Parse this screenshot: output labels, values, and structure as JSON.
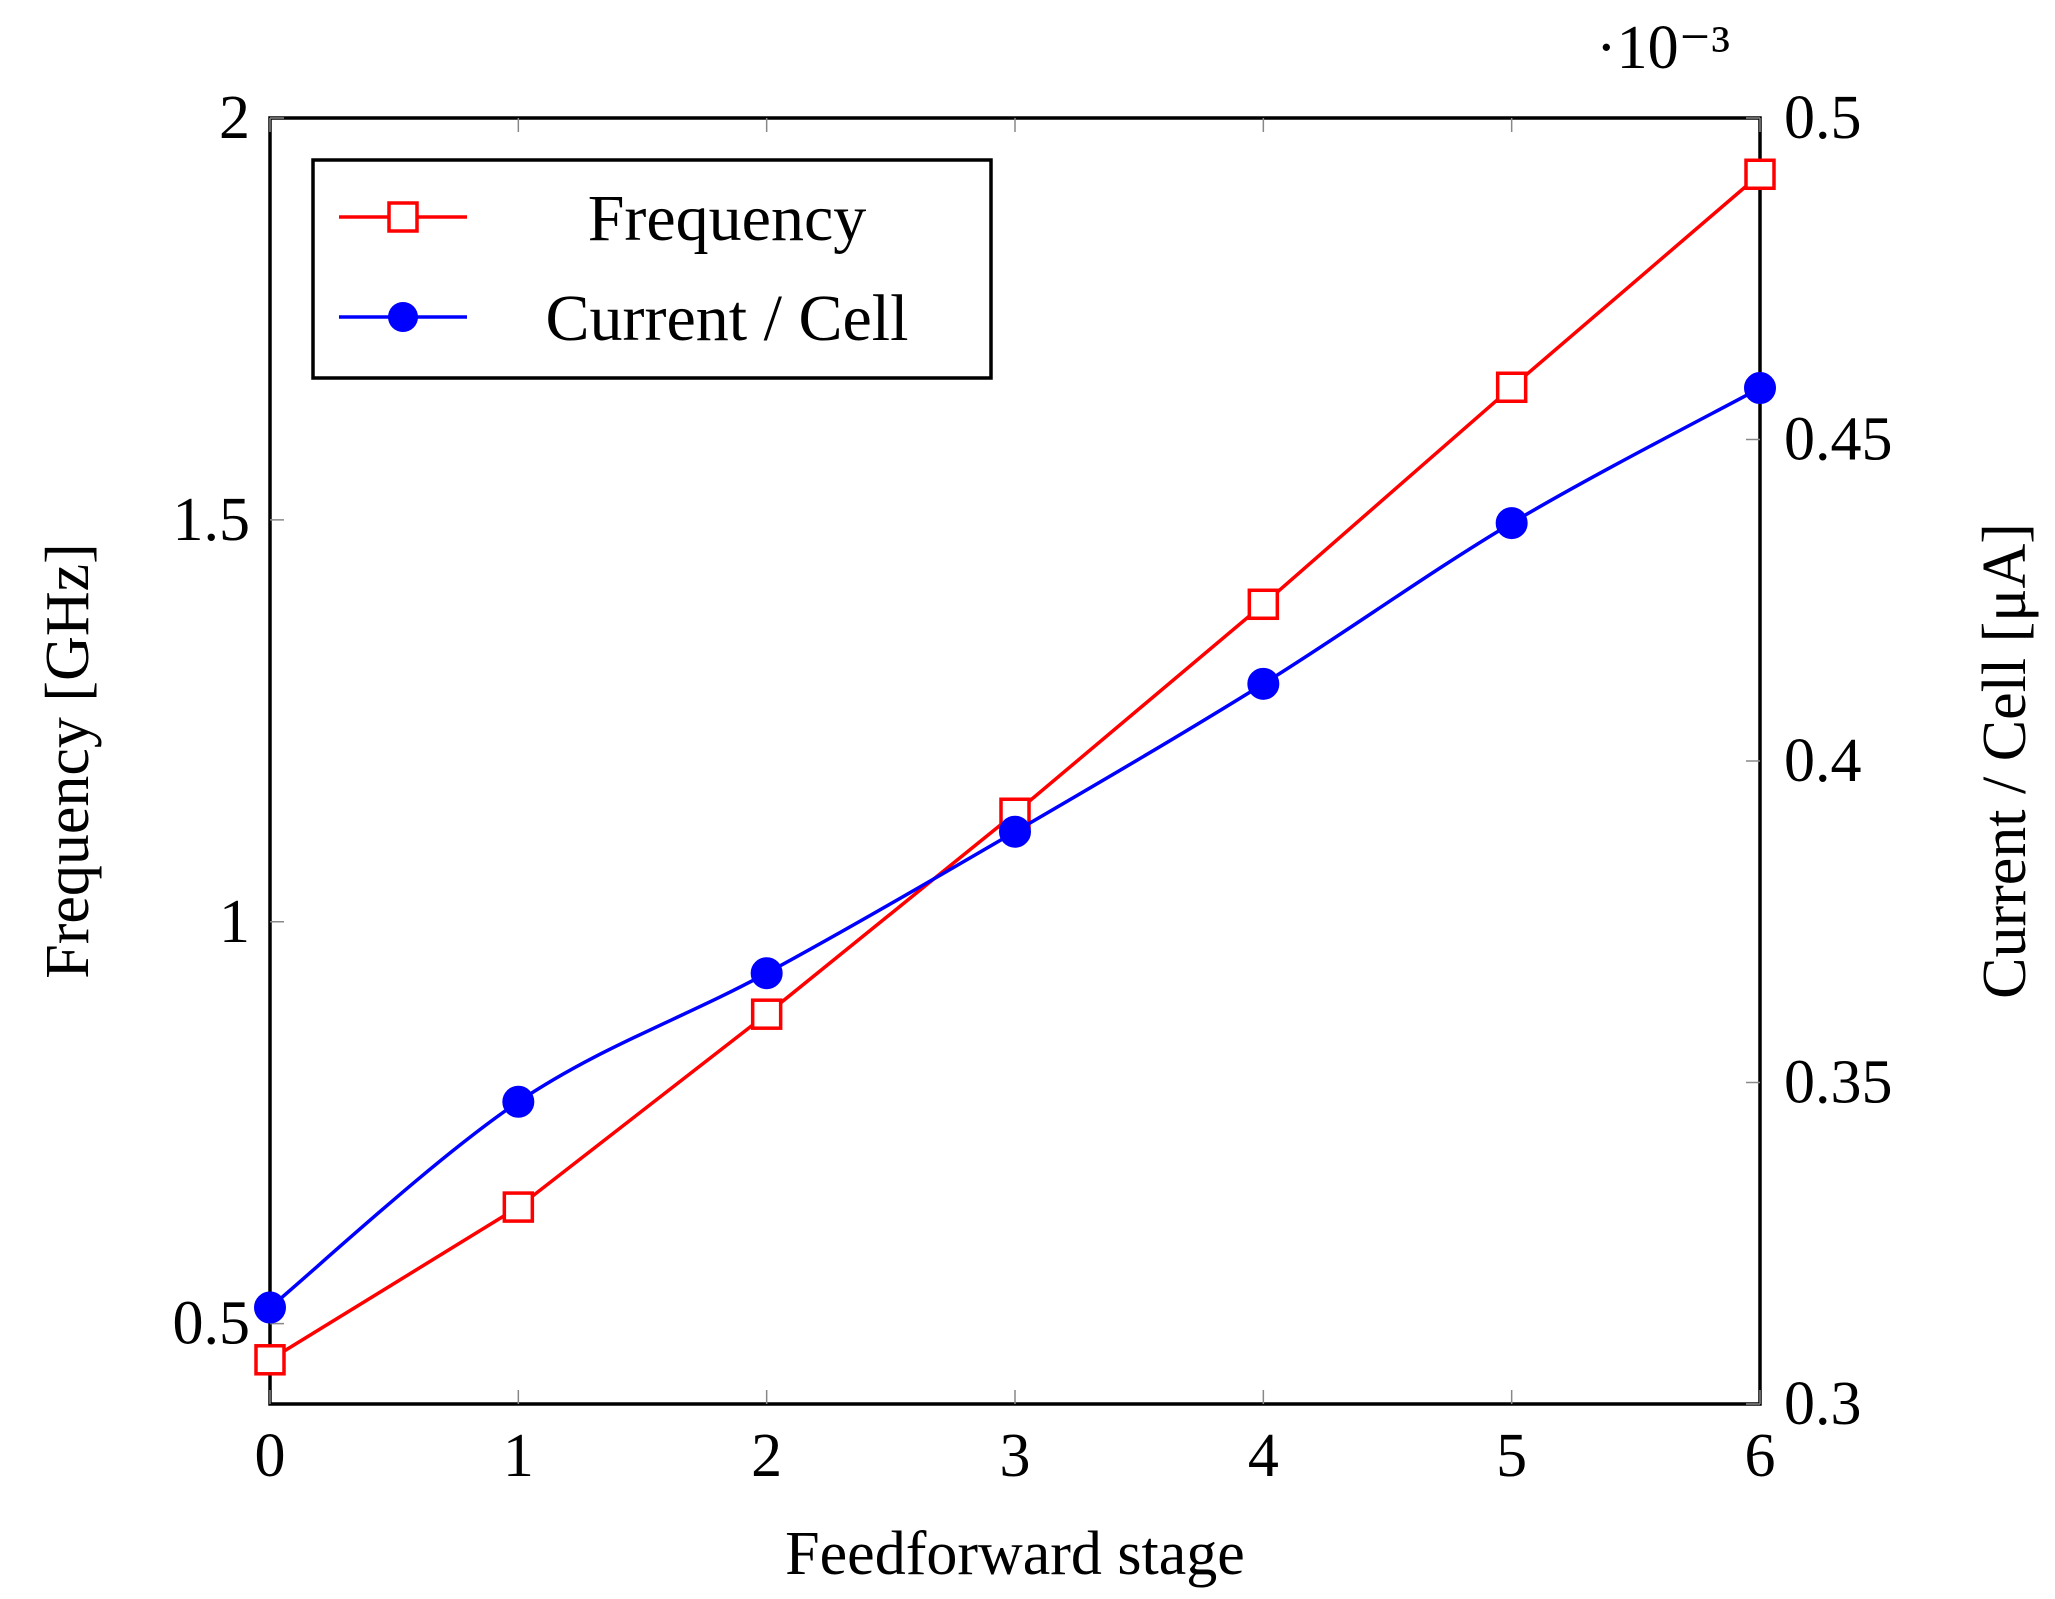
{
  "chart_data": {
    "type": "line",
    "x": [
      0,
      1,
      2,
      3,
      4,
      5,
      6
    ],
    "xlabel": "Feedforward stage",
    "xlim": [
      0,
      6
    ],
    "x_ticks": [
      "0",
      "1",
      "2",
      "3",
      "4",
      "5",
      "6"
    ],
    "y_left": {
      "label": "Frequency [GHz]",
      "lim": [
        0.4,
        2.0
      ],
      "ticks": [
        0.5,
        1.0,
        1.5,
        2.0
      ],
      "tick_labels": [
        "0.5",
        "1",
        "1.5",
        "2"
      ]
    },
    "y_right": {
      "label": "Current / Cell [μA]",
      "lim": [
        0.3,
        0.5
      ],
      "ticks": [
        0.3,
        0.35,
        0.4,
        0.45,
        0.5
      ],
      "tick_labels": [
        "0.3",
        "0.35",
        "0.4",
        "0.45",
        "0.5"
      ],
      "scale_label": "·10⁻³"
    },
    "series": [
      {
        "name": "Frequency",
        "axis": "left",
        "color": "#ff0000",
        "marker": "open-square",
        "values": [
          0.455,
          0.645,
          0.885,
          1.135,
          1.395,
          1.665,
          1.93
        ]
      },
      {
        "name": "Current / Cell",
        "axis": "right",
        "color": "#0000ff",
        "marker": "filled-circle",
        "smooth": true,
        "values": [
          0.315,
          0.347,
          0.367,
          0.389,
          0.412,
          0.437,
          0.458
        ]
      }
    ],
    "legend": {
      "position": "top-left",
      "entries": [
        "Frequency",
        "Current / Cell"
      ]
    },
    "grid": false
  }
}
